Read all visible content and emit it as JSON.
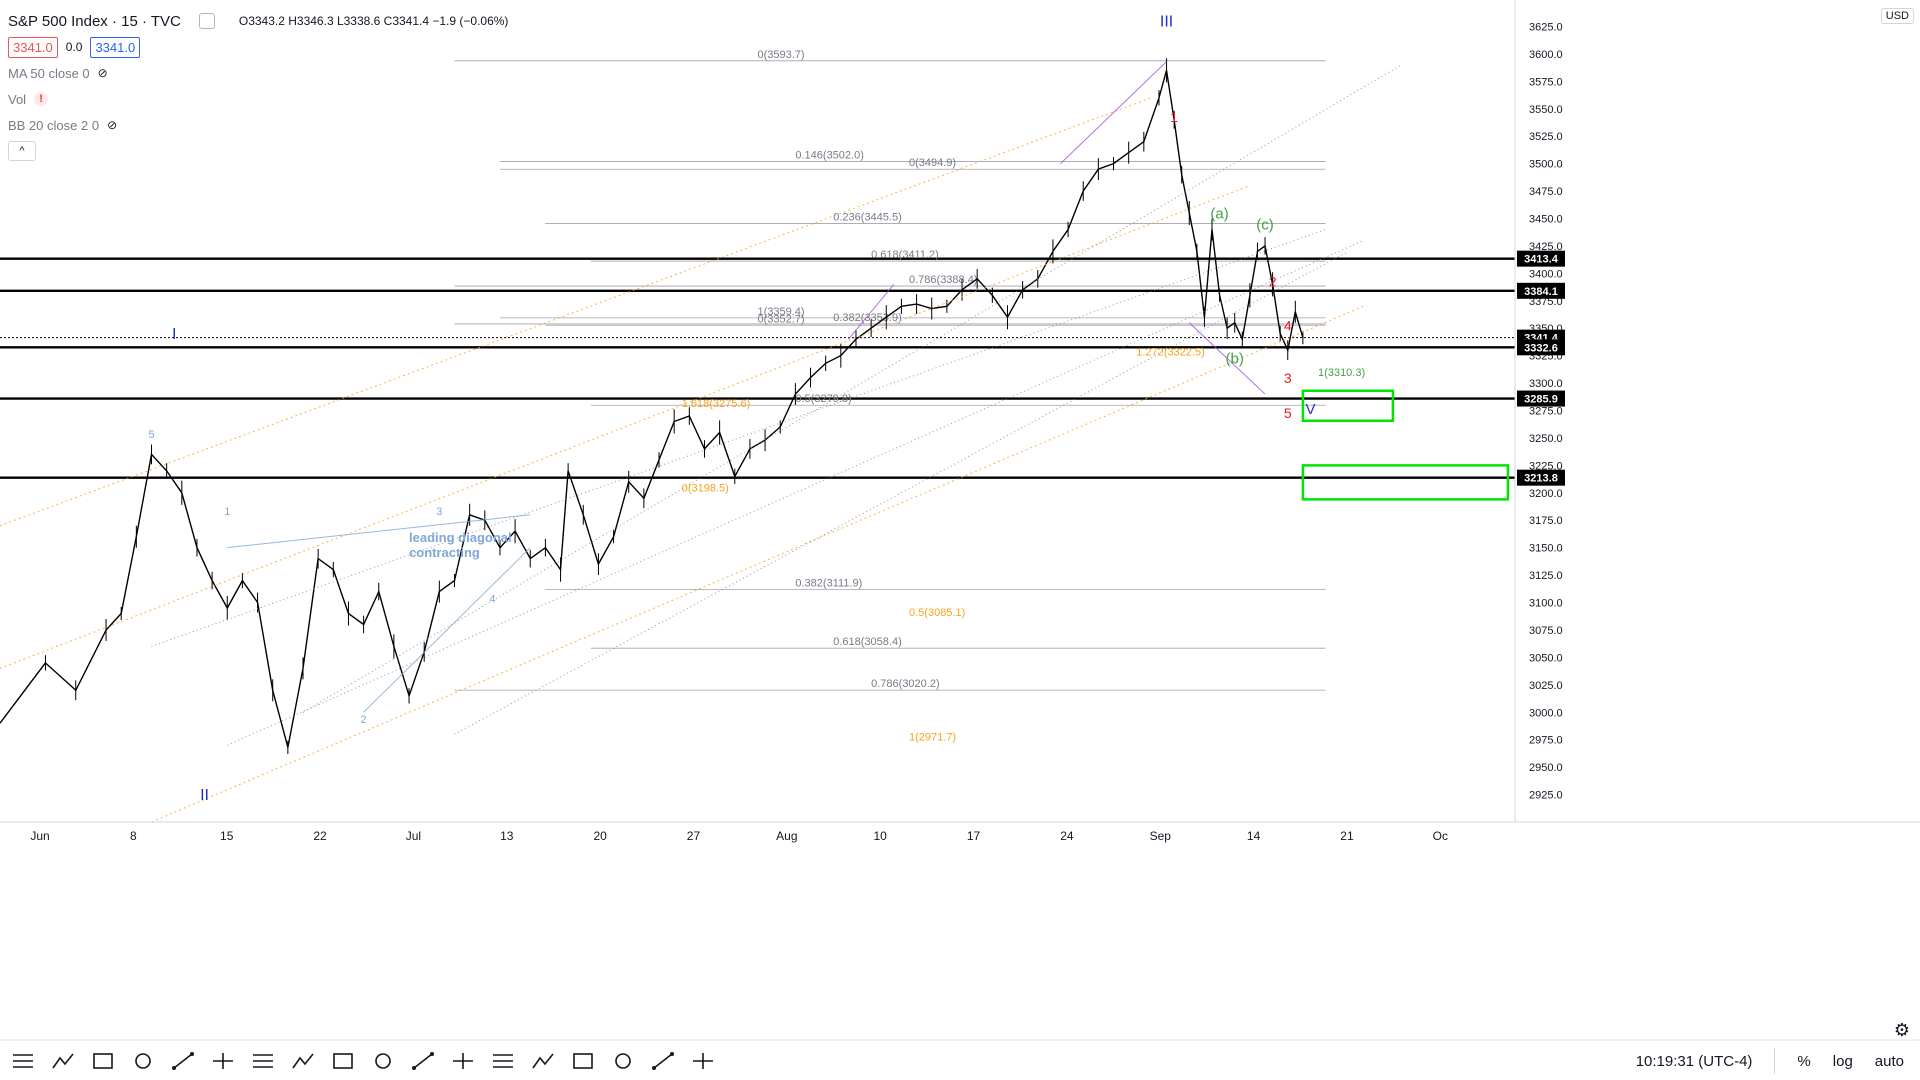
{
  "header": {
    "symbol": "S&P 500 Index · 15 · TVC",
    "ohlc": "O3343.2  H3346.3  L3338.6  C3341.4  −1.9 (−0.06%)",
    "bid": "3341.0",
    "spread": "0.0",
    "ask": "3341.0",
    "indicators": [
      "MA 50 close 0",
      "Vol",
      "BB 20 close 2 0"
    ],
    "eye_icon": "eye-off-icon",
    "warn_icon": "!",
    "collapse_icon": "^"
  },
  "currency": "USD",
  "colors": {
    "price": "#000000",
    "orange_fib": "#f7a21b",
    "gray_fib": "#787b86",
    "red_label": "#e31e24",
    "blue_label": "#1e2fc9",
    "light_blue": "#7fa7d8",
    "green": "#43a047",
    "box_green": "#00e600",
    "purple": "#a24bd6"
  },
  "chart_data": {
    "type": "line",
    "title": "S&P 500 Index · 15 · TVC",
    "xlabel": "",
    "ylabel": "",
    "ylim": [
      2900,
      3640
    ],
    "x_ticks": [
      "Jun",
      "8",
      "15",
      "22",
      "Jul",
      "13",
      "20",
      "27",
      "Aug",
      "10",
      "17",
      "24",
      "Sep",
      "14",
      "21",
      "Oc"
    ],
    "y_ticks": [
      2925,
      2950,
      2975,
      3000,
      3025,
      3050,
      3075,
      3100,
      3125,
      3150,
      3175,
      3200,
      3225,
      3250,
      3275,
      3300,
      3325,
      3350,
      3375,
      3400,
      3425,
      3450,
      3475,
      3500,
      3525,
      3550,
      3575,
      3600,
      3625
    ],
    "series": [
      {
        "values": [
          [
            0,
            2990
          ],
          [
            6,
            3045
          ],
          [
            10,
            3020
          ],
          [
            14,
            3075
          ],
          [
            16,
            3090
          ],
          [
            18,
            3160
          ],
          [
            20,
            3235
          ],
          [
            22,
            3220
          ],
          [
            24,
            3200
          ],
          [
            26,
            3150
          ],
          [
            28,
            3120
          ],
          [
            30,
            3095
          ],
          [
            32,
            3120
          ],
          [
            34,
            3100
          ],
          [
            36,
            3020
          ],
          [
            38,
            2968
          ],
          [
            40,
            3040
          ],
          [
            42,
            3140
          ],
          [
            44,
            3130
          ],
          [
            46,
            3090
          ],
          [
            48,
            3080
          ],
          [
            50,
            3110
          ],
          [
            52,
            3060
          ],
          [
            54,
            3015
          ],
          [
            56,
            3055
          ],
          [
            58,
            3110
          ],
          [
            60,
            3120
          ],
          [
            62,
            3180
          ],
          [
            64,
            3175
          ],
          [
            66,
            3150
          ],
          [
            68,
            3165
          ],
          [
            70,
            3140
          ],
          [
            72,
            3150
          ],
          [
            74,
            3130
          ],
          [
            75,
            3220
          ],
          [
            77,
            3180
          ],
          [
            79,
            3135
          ],
          [
            81,
            3160
          ],
          [
            83,
            3210
          ],
          [
            85,
            3195
          ],
          [
            87,
            3230
          ],
          [
            89,
            3265
          ],
          [
            91,
            3270
          ],
          [
            93,
            3240
          ],
          [
            95,
            3255
          ],
          [
            97,
            3215
          ],
          [
            99,
            3240
          ],
          [
            101,
            3248
          ],
          [
            103,
            3260
          ],
          [
            105,
            3290
          ],
          [
            107,
            3305
          ],
          [
            109,
            3318
          ],
          [
            111,
            3325
          ],
          [
            113,
            3340
          ],
          [
            115,
            3350
          ],
          [
            117,
            3360
          ],
          [
            119,
            3370
          ],
          [
            121,
            3372
          ],
          [
            123,
            3368
          ],
          [
            125,
            3370
          ],
          [
            127,
            3385
          ],
          [
            129,
            3395
          ],
          [
            131,
            3380
          ],
          [
            133,
            3360
          ],
          [
            135,
            3385
          ],
          [
            137,
            3395
          ],
          [
            139,
            3420
          ],
          [
            141,
            3440
          ],
          [
            143,
            3475
          ],
          [
            145,
            3495
          ],
          [
            147,
            3500
          ],
          [
            149,
            3510
          ],
          [
            151,
            3520
          ],
          [
            153,
            3560
          ],
          [
            154,
            3585
          ],
          [
            155,
            3540
          ],
          [
            156,
            3490
          ],
          [
            157,
            3455
          ],
          [
            158,
            3420
          ],
          [
            159,
            3360
          ],
          [
            160,
            3440
          ],
          [
            161,
            3380
          ],
          [
            162,
            3350
          ],
          [
            163,
            3355
          ],
          [
            164,
            3340
          ],
          [
            165,
            3380
          ],
          [
            166,
            3420
          ],
          [
            167,
            3425
          ],
          [
            168,
            3390
          ],
          [
            169,
            3345
          ],
          [
            170,
            3330
          ],
          [
            171,
            3365
          ],
          [
            172,
            3341.4
          ]
        ]
      }
    ],
    "price_labels": [
      {
        "text": "3413.4",
        "value": 3413.4
      },
      {
        "text": "3384.1",
        "value": 3384.1
      },
      {
        "text": "3341.4",
        "value": 3341.4
      },
      {
        "text": "3332.6",
        "value": 3332.6
      },
      {
        "text": "3285.9",
        "value": 3285.9
      },
      {
        "text": "3213.8",
        "value": 3213.8
      }
    ],
    "fib_labels_gray": [
      {
        "text": "0(3593.7)",
        "value": 3593.7
      },
      {
        "text": "0.146(3502.0)",
        "value": 3502.0
      },
      {
        "text": "0.236(3445.5)",
        "value": 3445.5
      },
      {
        "text": "0.618(3411.2)",
        "value": 3411.2
      },
      {
        "text": "0.786(3388.4)",
        "value": 3388.4
      },
      {
        "text": "1(3359.4)",
        "value": 3359.4
      },
      {
        "text": "0.382(3111.9)",
        "value": 3111.9
      },
      {
        "text": "0.618(3058.4)",
        "value": 3058.4
      },
      {
        "text": "0.786(3020.2)",
        "value": 3020.2
      },
      {
        "text": "0(3494.9)",
        "value": 3494.9
      },
      {
        "text": "0(3352.7)",
        "value": 3352.7
      },
      {
        "text": "0.5(3279.8)",
        "value": 3279.8
      },
      {
        "text": "0.382(3353.9)",
        "value": 3353.9
      }
    ],
    "fib_labels_orange": [
      {
        "text": "0(3198.5)",
        "value": 3198.5
      },
      {
        "text": "1(2971.7)",
        "value": 2971.7
      },
      {
        "text": "1.272(3322.5)",
        "value": 3322.5
      },
      {
        "text": "1.618(3275.6)",
        "value": 3275.6
      },
      {
        "text": "0.5(3085.1)",
        "value": 3085.1
      }
    ],
    "fib_labels_green": [
      {
        "text": "1(3310.3)",
        "value": 3310.3
      }
    ],
    "wave_labels": [
      {
        "text": "III",
        "color": "blue"
      },
      {
        "text": "I",
        "color": "blue"
      },
      {
        "text": "II",
        "color": "blue"
      },
      {
        "text": "V",
        "color": "blue"
      },
      {
        "text": "(a)",
        "color": "green"
      },
      {
        "text": "(b)",
        "color": "green"
      },
      {
        "text": "(c)",
        "color": "green"
      },
      {
        "text": "1",
        "color": "red"
      },
      {
        "text": "2",
        "color": "red"
      },
      {
        "text": "3",
        "color": "red"
      },
      {
        "text": "4",
        "color": "red"
      },
      {
        "text": "5",
        "color": "red"
      },
      {
        "text": "1",
        "color": "lightblue"
      },
      {
        "text": "2",
        "color": "lightblue"
      },
      {
        "text": "3",
        "color": "lightblue"
      },
      {
        "text": "4",
        "color": "lightblue"
      },
      {
        "text": "5",
        "color": "lightblue"
      }
    ],
    "annotations": [
      "leading diagonal",
      "contracting"
    ]
  },
  "footer": {
    "time": "10:19:31 (UTC-4)",
    "percent": "%",
    "log": "log",
    "auto": "auto"
  },
  "toolbar_icons": [
    "bar-style-icon",
    "indicators-icon",
    "templates-icon",
    "compare-icon",
    "alert-icon",
    "replay-icon",
    "horizontal-line-icon",
    "ray-icon",
    "trend-line-icon",
    "rectangle-icon",
    "path-icon",
    "ellipse-icon",
    "line-icon",
    "vertical-line-icon",
    "cross-line-icon",
    "xabcd-pattern-icon",
    "elliott-impulse-icon",
    "elliott-correction-icon"
  ]
}
